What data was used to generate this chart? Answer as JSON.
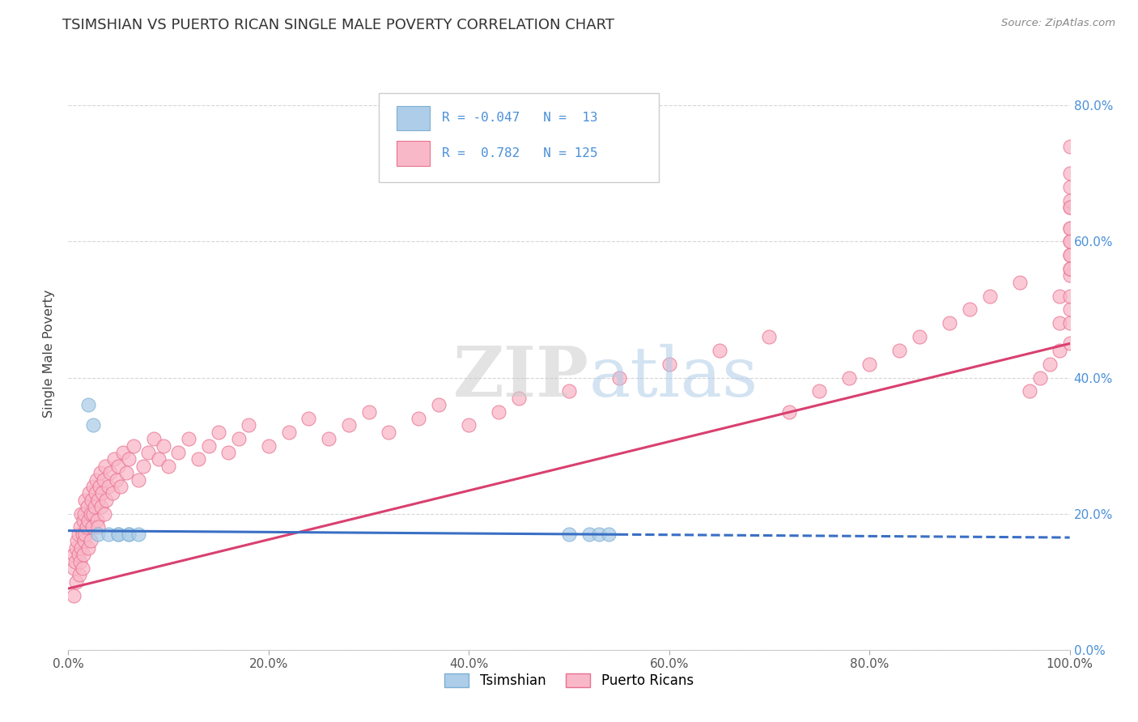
{
  "title": "TSIMSHIAN VS PUERTO RICAN SINGLE MALE POVERTY CORRELATION CHART",
  "source": "Source: ZipAtlas.com",
  "ylabel": "Single Male Poverty",
  "xlim": [
    0,
    1.0
  ],
  "ylim": [
    0,
    0.87
  ],
  "background_color": "#ffffff",
  "grid_color": "#cccccc",
  "tsimshian_color": "#aecde8",
  "tsimshian_edge_color": "#7bafd4",
  "puerto_rican_color": "#f9b8c8",
  "puerto_rican_edge_color": "#e87090",
  "tsimshian_line_color": "#3a6fc4",
  "puerto_rican_line_color": "#d94070",
  "tsimshian_R": -0.047,
  "tsimshian_N": 13,
  "puerto_rican_R": 0.782,
  "puerto_rican_N": 125,
  "legend_tsimshian_label": "Tsimshian",
  "legend_puerto_rican_label": "Puerto Ricans",
  "watermark_zip": "ZIP",
  "watermark_atlas": "atlas",
  "tsimshian_x": [
    0.02,
    0.025,
    0.03,
    0.04,
    0.05,
    0.05,
    0.06,
    0.06,
    0.07,
    0.5,
    0.52,
    0.53,
    0.54
  ],
  "tsimshian_y": [
    0.36,
    0.33,
    0.17,
    0.17,
    0.17,
    0.17,
    0.17,
    0.17,
    0.17,
    0.17,
    0.17,
    0.17,
    0.17
  ],
  "puerto_rican_x": [
    0.005,
    0.005,
    0.005,
    0.007,
    0.008,
    0.008,
    0.009,
    0.01,
    0.01,
    0.011,
    0.012,
    0.012,
    0.013,
    0.013,
    0.014,
    0.014,
    0.015,
    0.015,
    0.016,
    0.016,
    0.017,
    0.017,
    0.018,
    0.019,
    0.02,
    0.02,
    0.021,
    0.022,
    0.022,
    0.023,
    0.024,
    0.025,
    0.025,
    0.026,
    0.027,
    0.028,
    0.029,
    0.03,
    0.03,
    0.031,
    0.032,
    0.033,
    0.034,
    0.035,
    0.036,
    0.037,
    0.038,
    0.04,
    0.042,
    0.044,
    0.046,
    0.048,
    0.05,
    0.052,
    0.055,
    0.058,
    0.06,
    0.065,
    0.07,
    0.075,
    0.08,
    0.085,
    0.09,
    0.095,
    0.1,
    0.11,
    0.12,
    0.13,
    0.14,
    0.15,
    0.16,
    0.17,
    0.18,
    0.2,
    0.22,
    0.24,
    0.26,
    0.28,
    0.3,
    0.32,
    0.35,
    0.37,
    0.4,
    0.43,
    0.45,
    0.5,
    0.55,
    0.6,
    0.65,
    0.7,
    0.72,
    0.75,
    0.78,
    0.8,
    0.83,
    0.85,
    0.88,
    0.9,
    0.92,
    0.95,
    0.96,
    0.97,
    0.98,
    0.99,
    0.99,
    0.99,
    1.0,
    1.0,
    1.0,
    1.0,
    1.0,
    1.0,
    1.0,
    1.0,
    1.0,
    1.0,
    1.0,
    1.0,
    1.0,
    1.0,
    1.0,
    1.0,
    1.0,
    1.0,
    1.0
  ],
  "puerto_rican_y": [
    0.14,
    0.12,
    0.08,
    0.13,
    0.15,
    0.1,
    0.16,
    0.14,
    0.17,
    0.11,
    0.18,
    0.13,
    0.2,
    0.15,
    0.17,
    0.12,
    0.19,
    0.14,
    0.2,
    0.16,
    0.22,
    0.17,
    0.18,
    0.21,
    0.15,
    0.19,
    0.23,
    0.2,
    0.16,
    0.22,
    0.18,
    0.24,
    0.2,
    0.21,
    0.23,
    0.25,
    0.19,
    0.22,
    0.18,
    0.24,
    0.26,
    0.21,
    0.23,
    0.25,
    0.2,
    0.27,
    0.22,
    0.24,
    0.26,
    0.23,
    0.28,
    0.25,
    0.27,
    0.24,
    0.29,
    0.26,
    0.28,
    0.3,
    0.25,
    0.27,
    0.29,
    0.31,
    0.28,
    0.3,
    0.27,
    0.29,
    0.31,
    0.28,
    0.3,
    0.32,
    0.29,
    0.31,
    0.33,
    0.3,
    0.32,
    0.34,
    0.31,
    0.33,
    0.35,
    0.32,
    0.34,
    0.36,
    0.33,
    0.35,
    0.37,
    0.38,
    0.4,
    0.42,
    0.44,
    0.46,
    0.35,
    0.38,
    0.4,
    0.42,
    0.44,
    0.46,
    0.48,
    0.5,
    0.52,
    0.54,
    0.38,
    0.4,
    0.42,
    0.44,
    0.48,
    0.52,
    0.55,
    0.58,
    0.6,
    0.5,
    0.45,
    0.48,
    0.52,
    0.56,
    0.58,
    0.62,
    0.65,
    0.68,
    0.56,
    0.62,
    0.66,
    0.7,
    0.74,
    0.6,
    0.65
  ]
}
